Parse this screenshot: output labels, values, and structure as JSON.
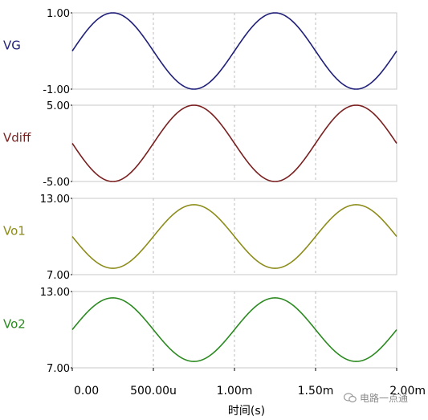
{
  "chart_data": {
    "type": "line",
    "x_axis": {
      "label": "时间(s)",
      "range": [
        0,
        0.002
      ],
      "ticks": [
        0,
        0.0005,
        0.001,
        0.0015,
        0.002
      ],
      "tick_labels": [
        "0.00",
        "500.00u",
        "1.00m",
        "1.50m",
        "2.00m"
      ]
    },
    "panels": [
      {
        "name": "VG",
        "color": "#1f1f7a",
        "ylim": [
          -1,
          1
        ],
        "tick_labels": [
          "1.00",
          "-1.00"
        ],
        "offset": 0,
        "amplitude": 1,
        "frequency_hz": 1000,
        "phase_sign": 1
      },
      {
        "name": "Vdiff",
        "color": "#7a1f1f",
        "ylim": [
          -5,
          5
        ],
        "tick_labels": [
          "5.00",
          "-5.00"
        ],
        "offset": 0,
        "amplitude": 5,
        "frequency_hz": 1000,
        "phase_sign": -1
      },
      {
        "name": "Vo1",
        "color": "#8c8c1a",
        "ylim": [
          7,
          13
        ],
        "tick_labels": [
          "13.00",
          "7.00"
        ],
        "offset": 10,
        "amplitude": 2.5,
        "frequency_hz": 1000,
        "phase_sign": -1
      },
      {
        "name": "Vo2",
        "color": "#2a8a1f",
        "ylim": [
          7,
          13
        ],
        "tick_labels": [
          "13.00",
          "7.00"
        ],
        "offset": 10,
        "amplitude": 2.5,
        "frequency_hz": 1000,
        "phase_sign": 1
      }
    ],
    "grid": "vertical-dashed"
  },
  "watermark": {
    "text": "电路一点通",
    "icon": "wechat-icon"
  }
}
